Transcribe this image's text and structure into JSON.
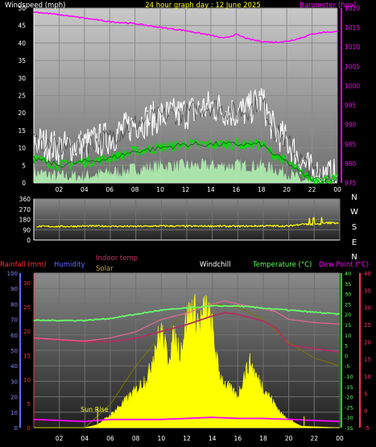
{
  "chart_data": [
    {
      "type": "line",
      "title": "24 hour graph day : 12 June 2025",
      "left_axis_label": "Windspeed (mph)",
      "right_axis_label": "Barometer (hpa)",
      "x_ticks": [
        "02",
        "04",
        "06",
        "08",
        "10",
        "12",
        "14",
        "16",
        "18",
        "20",
        "22",
        "00"
      ],
      "ylim_left": [
        0,
        50
      ],
      "yticks_left": [
        0,
        5,
        10,
        15,
        20,
        25,
        30,
        35,
        40,
        45,
        50
      ],
      "ylim_right": [
        975,
        1020
      ],
      "yticks_right": [
        975,
        980,
        985,
        990,
        995,
        1000,
        1005,
        1010,
        1015,
        1020
      ],
      "series": [
        {
          "name": "Barometer (hpa)",
          "axis": "right",
          "color": "#ff00ff",
          "x": [
            0,
            2,
            4,
            6,
            8,
            10,
            12,
            14,
            15,
            16,
            17,
            18,
            19,
            20,
            21,
            22,
            23,
            24
          ],
          "values": [
            1019,
            1018.3,
            1017.4,
            1016.5,
            1016,
            1015,
            1014.2,
            1013,
            1012.2,
            1013.2,
            1012,
            1011.4,
            1011.2,
            1011.4,
            1012.2,
            1013.3,
            1013.8,
            1013.9
          ]
        },
        {
          "name": "Gust",
          "axis": "left",
          "color": "#ffffff",
          "x": [
            0,
            2,
            4,
            6,
            8,
            10,
            12,
            14,
            16,
            17,
            18,
            19,
            20,
            21,
            22,
            23,
            24
          ],
          "values": [
            12,
            10,
            11,
            13,
            17,
            19,
            20,
            22,
            20,
            21,
            24,
            15,
            12,
            7,
            3,
            2,
            2
          ]
        },
        {
          "name": "Average",
          "axis": "left",
          "color": "#00dd00",
          "x": [
            0,
            2,
            4,
            6,
            8,
            10,
            12,
            14,
            16,
            18,
            19,
            20,
            21,
            22,
            23,
            24
          ],
          "values": [
            7,
            5,
            6,
            7,
            9,
            10,
            11,
            11,
            11,
            11,
            8,
            6,
            3,
            1,
            1,
            1
          ]
        },
        {
          "name": "Wind",
          "axis": "left",
          "color": "#b0f0b0",
          "x": [
            0,
            2,
            4,
            6,
            8,
            10,
            12,
            14,
            16,
            18,
            19,
            20,
            21,
            22,
            24
          ],
          "values": [
            3,
            2,
            2,
            3,
            4,
            5,
            5,
            5,
            5,
            5,
            4,
            3,
            1,
            0,
            0
          ]
        }
      ]
    },
    {
      "type": "line",
      "left_axis_label": "",
      "ylim": [
        0,
        360
      ],
      "yticks": [
        0,
        90,
        180,
        270,
        360
      ],
      "right_labels": [
        "N",
        "W",
        "S",
        "E",
        "N"
      ],
      "series": [
        {
          "name": "Wind direction",
          "color": "#ffff00",
          "x": [
            0,
            2,
            4,
            6,
            8,
            10,
            12,
            14,
            16,
            18,
            20,
            21,
            22,
            23,
            24
          ],
          "values": [
            120,
            118,
            122,
            121,
            119,
            123,
            121,
            122,
            120,
            124,
            122,
            140,
            135,
            150,
            150
          ]
        }
      ]
    },
    {
      "type": "area",
      "legend": [
        "Rainfall (mm)",
        "Humidity",
        "Indoor temp",
        "Solar",
        "Windchill",
        "Temperature (°C)",
        "Dew Point (°C)"
      ],
      "x_ticks": [
        "02",
        "04",
        "06",
        "08",
        "10",
        "12",
        "14",
        "16",
        "18",
        "20",
        "22",
        "00"
      ],
      "axis_rain": {
        "ticks": [
          0,
          5,
          10,
          15,
          20,
          25,
          30
        ]
      },
      "axis_humidity": {
        "ticks": [
          0,
          10,
          20,
          30,
          40,
          50,
          60,
          70,
          80,
          90,
          100
        ]
      },
      "axis_temp_inner": {
        "ticks": [
          -35,
          -30,
          -25,
          -20,
          -15,
          -10,
          -5,
          0,
          5,
          10,
          15,
          20,
          25,
          30,
          35,
          40
        ]
      },
      "axis_temp_outer": {
        "ticks": [
          -5,
          0,
          5,
          10,
          15,
          20,
          25,
          30,
          35,
          40
        ]
      },
      "annotation": "Sun Rise",
      "series": [
        {
          "name": "Humidity",
          "color": "#ff3366",
          "x": [
            0,
            2,
            4,
            6,
            8,
            10,
            12,
            14,
            15,
            16,
            18,
            19,
            20,
            22,
            24
          ],
          "values": [
            58,
            57,
            56,
            58,
            62,
            70,
            74,
            80,
            82,
            80,
            77,
            75,
            70,
            68,
            67
          ]
        },
        {
          "name": "Temperature (°C)",
          "color": "#66ff66",
          "x": [
            0,
            2,
            4,
            6,
            8,
            10,
            12,
            14,
            16,
            18,
            20,
            22,
            24
          ],
          "values": [
            17,
            17,
            17,
            18,
            20,
            22,
            23,
            24,
            24,
            23,
            22,
            21,
            20
          ]
        },
        {
          "name": "Indoor temp",
          "color": "#b03060",
          "x": [
            0,
            2,
            4,
            6,
            8,
            10,
            12,
            14,
            15,
            16,
            18,
            19,
            20,
            22,
            24
          ],
          "values": [
            21,
            20.5,
            20,
            20,
            21,
            23,
            25,
            27.5,
            28.5,
            28,
            26,
            24,
            19,
            18,
            17
          ]
        },
        {
          "name": "Dew Point (°C)",
          "color": "#ff00ff",
          "x": [
            0,
            2,
            4,
            6,
            8,
            10,
            12,
            14,
            16,
            18,
            20,
            22,
            24
          ],
          "values": [
            -31,
            -31.5,
            -32,
            -31,
            -31,
            -31,
            -30.5,
            -30,
            -30.5,
            -30.5,
            -31,
            -31.5,
            -32
          ]
        },
        {
          "name": "Solar",
          "color": "#ffff00",
          "x": [
            0,
            4,
            5,
            5.5,
            6,
            7,
            8,
            9,
            9.5,
            10,
            10.5,
            11,
            11.5,
            12,
            12.5,
            13,
            13.5,
            14,
            14.5,
            15,
            15.5,
            16,
            16.5,
            17,
            17.5,
            18,
            18.5,
            19,
            19.5,
            20,
            20.5,
            21,
            24
          ],
          "values": [
            0,
            0,
            2,
            5,
            8,
            16,
            24,
            34,
            52,
            62,
            45,
            58,
            50,
            70,
            78,
            66,
            78,
            64,
            36,
            28,
            24,
            20,
            34,
            42,
            32,
            26,
            20,
            14,
            8,
            6,
            3,
            1,
            0
          ]
        },
        {
          "name": "Solar max",
          "color": "#777700",
          "x": [
            0,
            4,
            6,
            8,
            10,
            12,
            14,
            16,
            18,
            20,
            22,
            24
          ],
          "values": [
            0,
            0,
            15,
            40,
            60,
            75,
            80,
            78,
            70,
            55,
            45,
            40
          ]
        }
      ]
    }
  ]
}
